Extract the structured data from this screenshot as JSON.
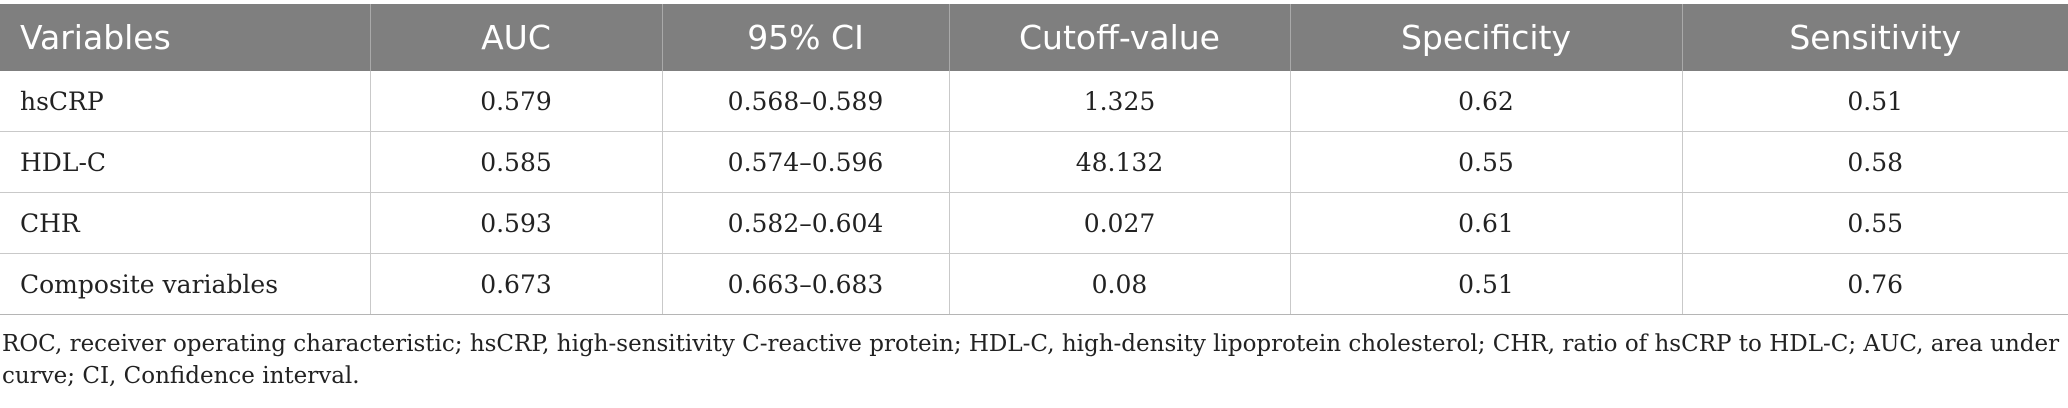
{
  "table": {
    "headers": [
      "Variables",
      "AUC",
      "95% CI",
      "Cutoff-value",
      "Specificity",
      "Sensitivity"
    ],
    "rows": [
      [
        "hsCRP",
        "0.579",
        "0.568–0.589",
        "1.325",
        "0.62",
        "0.51"
      ],
      [
        "HDL-C",
        "0.585",
        "0.574–0.596",
        "48.132",
        "0.55",
        "0.58"
      ],
      [
        "CHR",
        "0.593",
        "0.582–0.604",
        "0.027",
        "0.61",
        "0.55"
      ],
      [
        "Composite variables",
        "0.673",
        "0.663–0.683",
        "0.08",
        "0.51",
        "0.76"
      ]
    ]
  },
  "footnote": "ROC, receiver operating characteristic; hsCRP, high-sensitivity C-reactive protein; HDL-C, high-density lipoprotein cholesterol; CHR, ratio of hsCRP to HDL-C; AUC, area under curve; CI, Confidence interval.",
  "colors": {
    "header_bg": "#7f7f7f",
    "header_text": "#ffffff",
    "grid": "#c9c9c9",
    "body_text": "#222222"
  }
}
